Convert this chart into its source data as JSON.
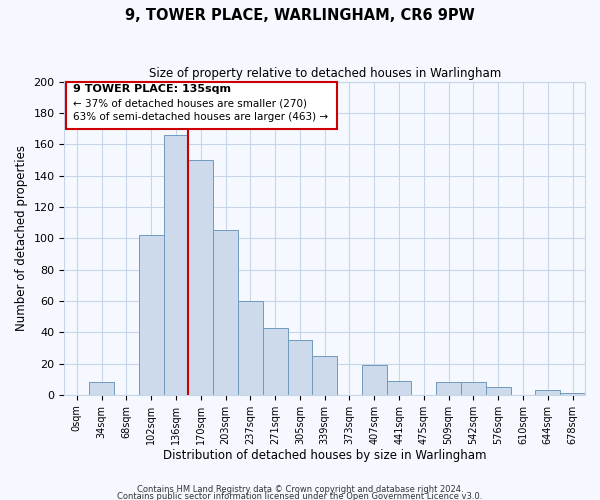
{
  "title": "9, TOWER PLACE, WARLINGHAM, CR6 9PW",
  "subtitle": "Size of property relative to detached houses in Warlingham",
  "xlabel": "Distribution of detached houses by size in Warlingham",
  "ylabel": "Number of detached properties",
  "bar_labels": [
    "0sqm",
    "34sqm",
    "68sqm",
    "102sqm",
    "136sqm",
    "170sqm",
    "203sqm",
    "237sqm",
    "271sqm",
    "305sqm",
    "339sqm",
    "373sqm",
    "407sqm",
    "441sqm",
    "475sqm",
    "509sqm",
    "542sqm",
    "576sqm",
    "610sqm",
    "644sqm",
    "678sqm"
  ],
  "bar_heights": [
    0,
    8,
    0,
    102,
    166,
    150,
    105,
    60,
    43,
    35,
    25,
    0,
    19,
    9,
    0,
    8,
    8,
    5,
    0,
    3,
    1
  ],
  "bar_color": "#cddaeb",
  "bar_edge_color": "#7099bb",
  "vline_x": 4.5,
  "vline_color": "#cc0000",
  "ylim": [
    0,
    200
  ],
  "yticks": [
    0,
    20,
    40,
    60,
    80,
    100,
    120,
    140,
    160,
    180,
    200
  ],
  "annotation_title": "9 TOWER PLACE: 135sqm",
  "annotation_line1": "← 37% of detached houses are smaller (270)",
  "annotation_line2": "63% of semi-detached houses are larger (463) →",
  "footer1": "Contains HM Land Registry data © Crown copyright and database right 2024.",
  "footer2": "Contains public sector information licensed under the Open Government Licence v3.0.",
  "background_color": "#f5f8ff",
  "grid_color": "#c8d4e8"
}
